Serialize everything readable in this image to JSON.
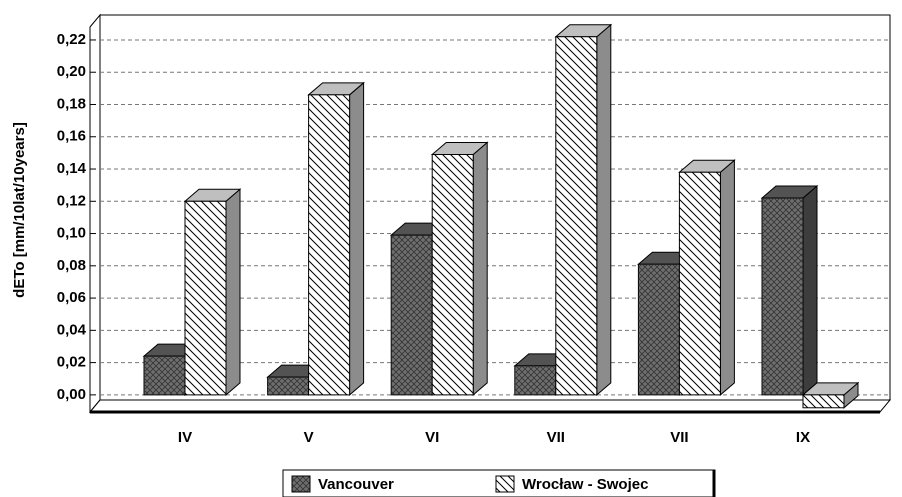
{
  "chart_data": {
    "type": "bar3d",
    "y_label": "dETo [mm/10lat/10years]",
    "categories": [
      "IV",
      "V",
      "VI",
      "VII",
      "VII",
      "IX"
    ],
    "series": [
      {
        "name": "Vancouver",
        "color": "#6e6e6e",
        "values": [
          0.024,
          0.011,
          0.099,
          0.018,
          0.081,
          0.122
        ]
      },
      {
        "name": "Wrocław - Swojec",
        "color": "#ffffff",
        "values": [
          0.12,
          0.186,
          0.149,
          0.222,
          0.138,
          -0.008
        ]
      }
    ],
    "ylim": [
      -0.01,
      0.24
    ],
    "yticks": [
      {
        "value": 0,
        "label": "0,00"
      },
      {
        "value": 0.02,
        "label": "0,02"
      },
      {
        "value": 0.04,
        "label": "0,04"
      },
      {
        "value": 0.06,
        "label": "0,06"
      },
      {
        "value": 0.08,
        "label": "0,08"
      },
      {
        "value": 0.1,
        "label": "0,10"
      },
      {
        "value": 0.12,
        "label": "0,12"
      },
      {
        "value": 0.14,
        "label": "0,14"
      },
      {
        "value": 0.16,
        "label": "0,16"
      },
      {
        "value": 0.18,
        "label": "0,18"
      },
      {
        "value": 0.2,
        "label": "0,20"
      },
      {
        "value": 0.22,
        "label": "0,22"
      }
    ],
    "grid": true
  }
}
